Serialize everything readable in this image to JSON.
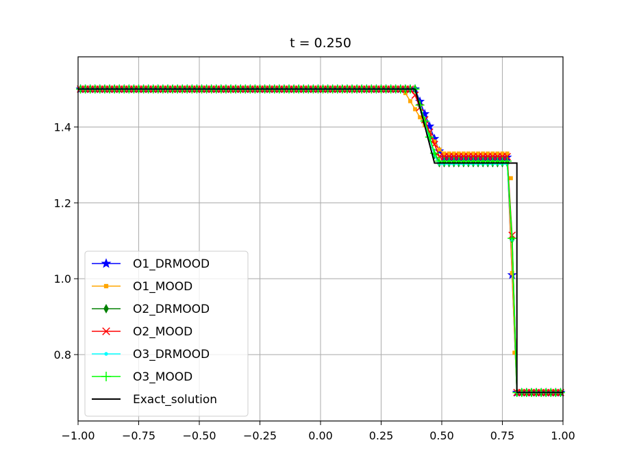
{
  "chart_data": {
    "type": "line",
    "title": "t = 0.250",
    "xlabel": "",
    "ylabel": "",
    "xlim": [
      -1.0,
      1.0
    ],
    "ylim": [
      0.625,
      1.585
    ],
    "xticks": [
      -1.0,
      -0.75,
      -0.5,
      -0.25,
      0.0,
      0.25,
      0.5,
      0.75,
      1.0
    ],
    "xtick_labels": [
      "−1.00",
      "−0.75",
      "−0.50",
      "−0.25",
      "0.00",
      "0.25",
      "0.50",
      "0.75",
      "1.00"
    ],
    "yticks": [
      0.8,
      1.0,
      1.2,
      1.4
    ],
    "ytick_labels": [
      "0.8",
      "1.0",
      "1.2",
      "1.4"
    ],
    "grid": true,
    "legend_position": "lower-left",
    "series": [
      {
        "name": "O1_DRMOOD",
        "color": "#0000ff",
        "marker": "star",
        "scheme": "O1",
        "fan": {
          "x": [
            0.39,
            0.5
          ],
          "y": [
            1.5,
            1.32
          ]
        },
        "plateau": 1.32,
        "shock": {
          "x": [
            0.78,
            0.8
          ],
          "y": [
            1.32,
            0.7
          ]
        },
        "right": 0.7
      },
      {
        "name": "O1_MOOD",
        "color": "#ffa500",
        "marker": "square",
        "scheme": "O1",
        "fan": {
          "x": [
            0.34,
            0.5
          ],
          "y": [
            1.5,
            1.33
          ]
        },
        "plateau": 1.33,
        "shock": {
          "x": [
            0.78,
            0.8
          ],
          "y": [
            1.33,
            0.7
          ]
        },
        "right": 0.7,
        "extra_points": [
          [
            0.785,
            1.265
          ],
          [
            0.8,
            0.805
          ]
        ]
      },
      {
        "name": "O2_DRMOOD",
        "color": "#008000",
        "marker": "diamond",
        "scheme": "O2",
        "fan": {
          "x": [
            0.39,
            0.48
          ],
          "y": [
            1.5,
            1.305
          ]
        },
        "plateau": 1.305,
        "shock": {
          "x": [
            0.785,
            0.8
          ],
          "y": [
            1.305,
            0.7
          ]
        },
        "right": 0.7
      },
      {
        "name": "O2_MOOD",
        "color": "#ff0000",
        "marker": "x",
        "scheme": "O2",
        "fan": {
          "x": [
            0.38,
            0.49
          ],
          "y": [
            1.5,
            1.322
          ]
        },
        "plateau": 1.322,
        "shock": {
          "x": [
            0.785,
            0.8
          ],
          "y": [
            1.322,
            0.7
          ]
        },
        "right": 0.7
      },
      {
        "name": "O3_DRMOOD",
        "color": "#00ffff",
        "marker": "dot",
        "scheme": "O3",
        "fan": {
          "x": [
            0.39,
            0.48
          ],
          "y": [
            1.5,
            1.302
          ]
        },
        "plateau": 1.302,
        "shock": {
          "x": [
            0.785,
            0.8
          ],
          "y": [
            1.302,
            0.7
          ]
        },
        "right": 0.7
      },
      {
        "name": "O3_MOOD",
        "color": "#00ff00",
        "marker": "plus",
        "scheme": "O3",
        "fan": {
          "x": [
            0.39,
            0.48
          ],
          "y": [
            1.5,
            1.31
          ]
        },
        "plateau": 1.31,
        "shock": {
          "x": [
            0.785,
            0.8
          ],
          "y": [
            1.31,
            0.7
          ]
        },
        "right": 0.7
      },
      {
        "name": "Exact_solution",
        "color": "#000000",
        "marker": "none",
        "scheme": "exact",
        "x": [
          -1.0,
          0.39,
          0.47,
          0.81,
          0.81,
          1.0
        ],
        "y": [
          1.5,
          1.5,
          1.305,
          1.305,
          0.7,
          0.7
        ]
      }
    ]
  }
}
